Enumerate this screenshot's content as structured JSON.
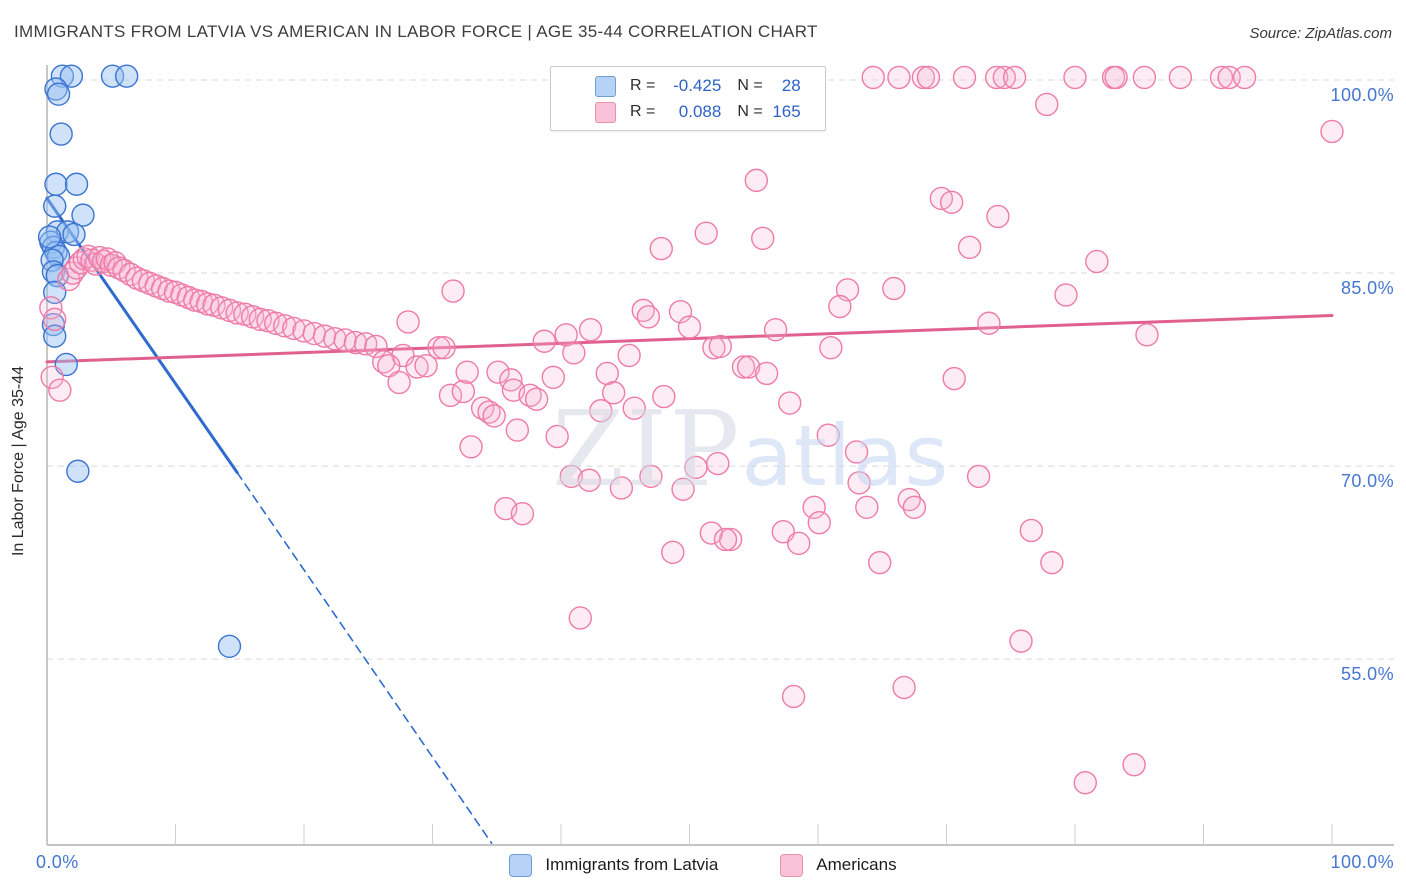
{
  "header": {
    "title": "IMMIGRANTS FROM LATVIA VS AMERICAN IN LABOR FORCE | AGE 35-44 CORRELATION CHART",
    "source": "Source: ZipAtlas.com"
  },
  "legend_box": {
    "rows": [
      {
        "series": "Immigrants from Latvia",
        "r_label": "R =",
        "r_value": "-0.425",
        "n_label": "N =",
        "n_value": "28"
      },
      {
        "series": "Americans",
        "r_label": "R =",
        "r_value": "0.088",
        "n_label": "N =",
        "n_value": "165"
      }
    ]
  },
  "axes": {
    "y_axis_title": "In Labor Force | Age 35-44",
    "y_ticks": [
      {
        "label": "100.0%",
        "value": 100
      },
      {
        "label": "85.0%",
        "value": 85
      },
      {
        "label": "70.0%",
        "value": 70
      },
      {
        "label": "55.0%",
        "value": 55
      }
    ],
    "x_left_label": "0.0%",
    "x_right_label": "100.0%"
  },
  "bottom_legend": [
    {
      "label": "Immigrants from Latvia",
      "color": "#b6d3f7"
    },
    {
      "label": "Americans",
      "color": "#f9c2d8"
    }
  ],
  "watermark": {
    "part1": "ZIP",
    "part2": "atlas"
  },
  "colors": {
    "blue_stroke": "#3b74d1",
    "blue_fill": "rgba(148,190,242,0.45)",
    "pink_stroke": "#ee7ba6",
    "pink_fill": "rgba(249,180,212,0.25)",
    "blue_trend": "#2f6bce",
    "pink_trend": "#e0608e",
    "gridline": "#d9d9d9",
    "axis": "#b0b0b0",
    "tick_label": "#4577d0"
  },
  "chart_data": {
    "type": "scatter",
    "title": "IMMIGRANTS FROM LATVIA VS AMERICAN IN LABOR FORCE | AGE 35-44 CORRELATION CHART",
    "xlabel": "Immigrants from Latvia (%)",
    "ylabel": "In Labor Force | Age 35-44",
    "x_range": [
      0,
      100
    ],
    "y_range": [
      40,
      101
    ],
    "y_gridline_values": [
      100,
      85,
      70,
      55
    ],
    "x_tick_step_pct": 10,
    "legend_position": "top-center and bottom-center",
    "grid": "horizontal dashed",
    "series": [
      {
        "name": "Immigrants from Latvia",
        "R": -0.425,
        "N": 28,
        "points": [
          [
            1.2,
            100.3
          ],
          [
            1.9,
            100.3
          ],
          [
            5.1,
            100.3
          ],
          [
            6.2,
            100.3
          ],
          [
            0.7,
            99.3
          ],
          [
            0.9,
            98.9
          ],
          [
            1.1,
            95.8
          ],
          [
            0.7,
            91.9
          ],
          [
            2.3,
            91.9
          ],
          [
            0.6,
            90.2
          ],
          [
            2.8,
            89.5
          ],
          [
            0.8,
            88.2
          ],
          [
            1.6,
            88.2
          ],
          [
            2.1,
            88.0
          ],
          [
            0.3,
            87.4
          ],
          [
            0.5,
            87.0
          ],
          [
            0.7,
            86.6
          ],
          [
            0.9,
            86.3
          ],
          [
            0.4,
            86.0
          ],
          [
            0.2,
            87.8
          ],
          [
            0.5,
            85.1
          ],
          [
            0.8,
            84.8
          ],
          [
            0.6,
            83.5
          ],
          [
            0.5,
            81.0
          ],
          [
            0.6,
            80.1
          ],
          [
            1.5,
            77.9
          ],
          [
            2.4,
            69.6
          ],
          [
            14.2,
            56.0
          ]
        ]
      },
      {
        "name": "Americans",
        "R": 0.088,
        "N": 165,
        "points": [
          [
            1.7,
            84.5
          ],
          [
            2.0,
            85.0
          ],
          [
            2.3,
            85.4
          ],
          [
            2.6,
            85.8
          ],
          [
            2.9,
            86.1
          ],
          [
            3.2,
            86.3
          ],
          [
            3.5,
            86.0
          ],
          [
            3.8,
            85.7
          ],
          [
            4.1,
            86.2
          ],
          [
            4.4,
            85.9
          ],
          [
            4.7,
            86.1
          ],
          [
            5.0,
            85.6
          ],
          [
            5.3,
            85.8
          ],
          [
            5.6,
            85.4
          ],
          [
            6.0,
            85.2
          ],
          [
            6.5,
            84.9
          ],
          [
            7.0,
            84.6
          ],
          [
            7.5,
            84.4
          ],
          [
            8.0,
            84.2
          ],
          [
            8.5,
            84.0
          ],
          [
            9.0,
            83.8
          ],
          [
            9.5,
            83.6
          ],
          [
            10.0,
            83.5
          ],
          [
            10.5,
            83.3
          ],
          [
            11.0,
            83.1
          ],
          [
            11.5,
            82.9
          ],
          [
            12.0,
            82.8
          ],
          [
            12.5,
            82.6
          ],
          [
            13.0,
            82.5
          ],
          [
            13.6,
            82.3
          ],
          [
            14.2,
            82.1
          ],
          [
            14.8,
            81.9
          ],
          [
            15.4,
            81.8
          ],
          [
            16.0,
            81.6
          ],
          [
            16.6,
            81.4
          ],
          [
            17.2,
            81.3
          ],
          [
            17.8,
            81.1
          ],
          [
            18.5,
            80.9
          ],
          [
            19.2,
            80.7
          ],
          [
            20.0,
            80.5
          ],
          [
            20.8,
            80.3
          ],
          [
            21.6,
            80.1
          ],
          [
            22.4,
            79.9
          ],
          [
            23.2,
            79.8
          ],
          [
            24.0,
            79.6
          ],
          [
            24.8,
            79.5
          ],
          [
            25.6,
            79.3
          ],
          [
            0.3,
            82.3
          ],
          [
            0.6,
            81.4
          ],
          [
            0.4,
            76.9
          ],
          [
            1.0,
            75.9
          ],
          [
            31.6,
            83.6
          ],
          [
            28.1,
            81.2
          ],
          [
            30.5,
            79.2
          ],
          [
            30.9,
            79.2
          ],
          [
            27.7,
            78.6
          ],
          [
            26.2,
            78.1
          ],
          [
            26.6,
            77.8
          ],
          [
            28.8,
            77.7
          ],
          [
            29.5,
            77.8
          ],
          [
            27.4,
            76.5
          ],
          [
            31.4,
            75.5
          ],
          [
            32.4,
            75.8
          ],
          [
            32.7,
            77.3
          ],
          [
            35.1,
            77.3
          ],
          [
            36.1,
            76.7
          ],
          [
            36.3,
            75.9
          ],
          [
            33.9,
            74.5
          ],
          [
            34.4,
            74.2
          ],
          [
            34.8,
            73.9
          ],
          [
            36.6,
            72.8
          ],
          [
            33.0,
            71.5
          ],
          [
            37.6,
            75.5
          ],
          [
            38.1,
            75.2
          ],
          [
            38.7,
            79.7
          ],
          [
            40.4,
            80.2
          ],
          [
            39.4,
            76.9
          ],
          [
            39.7,
            72.3
          ],
          [
            41.0,
            78.8
          ],
          [
            42.3,
            80.6
          ],
          [
            43.6,
            77.2
          ],
          [
            44.1,
            75.7
          ],
          [
            43.1,
            74.3
          ],
          [
            45.3,
            78.6
          ],
          [
            45.7,
            74.5
          ],
          [
            46.4,
            82.1
          ],
          [
            46.8,
            81.6
          ],
          [
            49.3,
            82.0
          ],
          [
            50.0,
            80.8
          ],
          [
            48.0,
            75.4
          ],
          [
            40.8,
            69.2
          ],
          [
            42.2,
            68.9
          ],
          [
            44.7,
            68.3
          ],
          [
            47.0,
            69.2
          ],
          [
            49.5,
            68.2
          ],
          [
            35.7,
            66.7
          ],
          [
            37.0,
            66.3
          ],
          [
            50.5,
            69.9
          ],
          [
            51.9,
            79.2
          ],
          [
            52.2,
            70.2
          ],
          [
            55.2,
            92.2
          ],
          [
            69.6,
            90.8
          ],
          [
            70.4,
            90.5
          ],
          [
            74.0,
            89.4
          ],
          [
            55.7,
            87.7
          ],
          [
            71.8,
            87.0
          ],
          [
            81.7,
            85.9
          ],
          [
            62.3,
            83.7
          ],
          [
            65.9,
            83.8
          ],
          [
            61.7,
            82.4
          ],
          [
            79.3,
            83.3
          ],
          [
            56.7,
            80.6
          ],
          [
            73.3,
            81.1
          ],
          [
            52.4,
            79.3
          ],
          [
            54.2,
            77.7
          ],
          [
            54.6,
            77.7
          ],
          [
            56.0,
            77.2
          ],
          [
            61.0,
            79.2
          ],
          [
            70.6,
            76.8
          ],
          [
            57.8,
            74.9
          ],
          [
            60.8,
            72.4
          ],
          [
            63.0,
            71.1
          ],
          [
            63.2,
            68.7
          ],
          [
            72.5,
            69.2
          ],
          [
            67.1,
            67.4
          ],
          [
            67.5,
            66.8
          ],
          [
            63.8,
            66.8
          ],
          [
            59.7,
            66.8
          ],
          [
            60.1,
            65.6
          ],
          [
            57.3,
            64.9
          ],
          [
            58.5,
            64.0
          ],
          [
            53.2,
            64.3
          ],
          [
            64.8,
            62.5
          ],
          [
            76.6,
            65.0
          ],
          [
            78.2,
            62.5
          ],
          [
            75.8,
            56.4
          ],
          [
            58.1,
            52.1
          ],
          [
            66.7,
            52.8
          ],
          [
            80.8,
            45.4
          ],
          [
            48.7,
            63.3
          ],
          [
            51.7,
            64.8
          ],
          [
            52.8,
            64.3
          ],
          [
            41.5,
            58.2
          ],
          [
            84.6,
            46.8
          ],
          [
            47.8,
            86.9
          ],
          [
            51.3,
            88.1
          ],
          [
            77.8,
            98.1
          ],
          [
            100.0,
            96.0
          ],
          [
            85.6,
            80.2
          ],
          [
            64.3,
            100.2
          ],
          [
            66.3,
            100.2
          ],
          [
            68.2,
            100.2
          ],
          [
            68.6,
            100.2
          ],
          [
            71.4,
            100.2
          ],
          [
            73.9,
            100.2
          ],
          [
            74.5,
            100.2
          ],
          [
            75.3,
            100.2
          ],
          [
            80.0,
            100.2
          ],
          [
            83.0,
            100.2
          ],
          [
            83.2,
            100.2
          ],
          [
            85.4,
            100.2
          ],
          [
            88.2,
            100.2
          ],
          [
            91.4,
            100.2
          ],
          [
            92.0,
            100.2
          ],
          [
            93.2,
            100.2
          ]
        ]
      }
    ],
    "trend_lines": [
      {
        "series": "Immigrants from Latvia",
        "style": "solid",
        "from": [
          0,
          90.8
        ],
        "to": [
          14.8,
          69.5
        ]
      },
      {
        "series": "Immigrants from Latvia",
        "style": "dashed",
        "from": [
          14.8,
          69.5
        ],
        "to": [
          34.6,
          40.7
        ]
      },
      {
        "series": "Americans",
        "style": "solid",
        "from": [
          0,
          78.1
        ],
        "to": [
          100,
          81.7
        ]
      }
    ]
  }
}
